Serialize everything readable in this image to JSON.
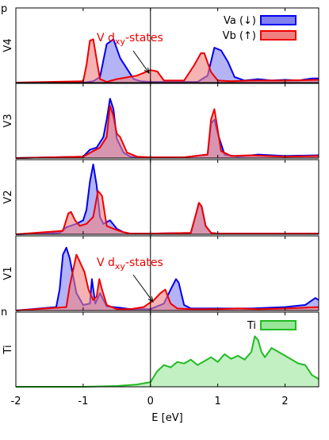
{
  "chart_data": {
    "type": "area",
    "xlabel": "E [eV]",
    "xlim": [
      -2,
      2.5
    ],
    "xticks": [
      -2,
      -1,
      0,
      1,
      2
    ],
    "clipped_labels": {
      "top": "p",
      "mid": "n"
    },
    "legend_top": {
      "placement": "top-right",
      "entries": [
        {
          "label": "Va (↓)",
          "fill": "#8080f0",
          "stroke": "#0000ee"
        },
        {
          "label": "Vb (↑)",
          "fill": "#f08080",
          "stroke": "#ee0000"
        }
      ]
    },
    "legend_ti": {
      "placement": "top-right",
      "entries": [
        {
          "label": "Ti",
          "fill": "#99e699",
          "stroke": "#22bb22"
        }
      ]
    },
    "annotations": [
      {
        "panel": "V4",
        "prefix": "V d",
        "sub": "xy",
        "suffix": "-states",
        "color": "#ee0000",
        "arrow_to_x": 0.0
      },
      {
        "panel": "V1",
        "prefix": "V d",
        "sub": "xy",
        "suffix": "-states",
        "color": "#ee0000",
        "arrow_to_x": 0.05
      }
    ],
    "panels": [
      {
        "label": "V4",
        "ymax": 1.0,
        "series": [
          {
            "name": "Va (↓)",
            "color": "#0000ee",
            "fill": "#8080f0",
            "x": [
              -2.0,
              -1.0,
              -0.85,
              -0.75,
              -0.65,
              -0.55,
              -0.45,
              -0.35,
              -0.25,
              -0.15,
              0.0,
              0.2,
              0.4,
              0.7,
              0.85,
              0.95,
              1.05,
              1.15,
              1.25,
              1.4,
              1.6,
              1.8,
              2.0,
              2.2,
              2.4,
              2.5
            ],
            "y": [
              0.0,
              0.0,
              0.02,
              0.08,
              0.55,
              0.62,
              0.35,
              0.2,
              0.05,
              0.02,
              0.01,
              0.01,
              0.01,
              0.01,
              0.1,
              0.5,
              0.46,
              0.3,
              0.08,
              0.03,
              0.05,
              0.03,
              0.04,
              0.03,
              0.06,
              0.06
            ]
          },
          {
            "name": "Vb (↑)",
            "color": "#ee0000",
            "fill": "#f08080",
            "x": [
              -2.0,
              -1.0,
              -0.95,
              -0.9,
              -0.85,
              -0.75,
              -0.65,
              -0.5,
              -0.2,
              0.0,
              0.1,
              0.2,
              0.5,
              0.65,
              0.75,
              0.8,
              0.9,
              1.0,
              1.2,
              1.5,
              2.0,
              2.5
            ],
            "y": [
              0.0,
              0.02,
              0.25,
              0.6,
              0.62,
              0.05,
              0.01,
              0.05,
              0.1,
              0.18,
              0.16,
              0.03,
              0.03,
              0.25,
              0.42,
              0.42,
              0.15,
              0.03,
              0.02,
              0.03,
              0.03,
              0.04
            ]
          }
        ]
      },
      {
        "label": "V3",
        "ymax": 1.0,
        "series": [
          {
            "name": "Va (↓)",
            "color": "#0000ee",
            "fill": "#8080f0",
            "x": [
              -2.0,
              -1.0,
              -0.9,
              -0.8,
              -0.7,
              -0.65,
              -0.6,
              -0.55,
              -0.5,
              -0.4,
              -0.3,
              -0.2,
              0.0,
              0.5,
              0.85,
              0.9,
              0.95,
              1.0,
              1.1,
              1.3,
              1.6,
              2.0,
              2.5
            ],
            "y": [
              0.0,
              0.02,
              0.12,
              0.15,
              0.3,
              0.55,
              0.85,
              0.7,
              0.28,
              0.08,
              0.02,
              0.01,
              0.01,
              0.01,
              0.05,
              0.5,
              0.55,
              0.35,
              0.05,
              0.02,
              0.05,
              0.03,
              0.04
            ]
          },
          {
            "name": "Vb (↑)",
            "color": "#ee0000",
            "fill": "#f08080",
            "x": [
              -2.0,
              -1.0,
              -0.85,
              -0.75,
              -0.65,
              -0.6,
              -0.55,
              -0.5,
              -0.45,
              -0.35,
              -0.2,
              0.0,
              0.5,
              0.85,
              0.9,
              0.95,
              1.0,
              1.05,
              1.2,
              1.5,
              2.0,
              2.5
            ],
            "y": [
              0.0,
              0.02,
              0.1,
              0.15,
              0.3,
              0.75,
              0.6,
              0.35,
              0.3,
              0.08,
              0.02,
              0.01,
              0.01,
              0.05,
              0.55,
              0.7,
              0.4,
              0.1,
              0.03,
              0.04,
              0.02,
              0.03
            ]
          }
        ]
      },
      {
        "label": "V2",
        "ymax": 1.0,
        "series": [
          {
            "name": "Va (↓)",
            "color": "#0000ee",
            "fill": "#8080f0",
            "x": [
              -2.0,
              -1.35,
              -1.25,
              -1.1,
              -1.0,
              -0.95,
              -0.9,
              -0.85,
              -0.8,
              -0.75,
              -0.7,
              -0.6,
              -0.5,
              -0.4,
              -0.3,
              0.0,
              0.6,
              0.68,
              0.72,
              0.76,
              0.82,
              0.9,
              1.0,
              1.5,
              2.0,
              2.5
            ],
            "y": [
              0.0,
              0.02,
              0.1,
              0.15,
              0.2,
              0.35,
              0.75,
              1.0,
              0.7,
              0.25,
              0.15,
              0.2,
              0.08,
              0.03,
              0.01,
              0.01,
              0.02,
              0.3,
              0.45,
              0.4,
              0.12,
              0.02,
              0.01,
              0.01,
              0.01,
              0.01
            ]
          },
          {
            "name": "Vb (↑)",
            "color": "#ee0000",
            "fill": "#f08080",
            "x": [
              -2.0,
              -1.3,
              -1.22,
              -1.18,
              -1.12,
              -1.05,
              -0.95,
              -0.85,
              -0.78,
              -0.72,
              -0.68,
              -0.65,
              -0.55,
              -0.4,
              -0.3,
              0.0,
              0.6,
              0.68,
              0.72,
              0.76,
              0.82,
              0.9,
              1.0,
              1.5,
              2.0,
              2.5
            ],
            "y": [
              0.0,
              0.05,
              0.3,
              0.32,
              0.2,
              0.12,
              0.15,
              0.25,
              0.62,
              0.55,
              0.3,
              0.12,
              0.08,
              0.03,
              0.01,
              0.01,
              0.02,
              0.3,
              0.45,
              0.4,
              0.12,
              0.02,
              0.01,
              0.01,
              0.01,
              0.01
            ]
          }
        ]
      },
      {
        "label": "V1",
        "ymax": 1.0,
        "series": [
          {
            "name": "Va (↓)",
            "color": "#0000ee",
            "fill": "#8080f0",
            "x": [
              -2.0,
              -1.4,
              -1.35,
              -1.3,
              -1.25,
              -1.2,
              -1.1,
              -1.0,
              -0.9,
              -0.87,
              -0.82,
              -0.75,
              -0.65,
              -0.55,
              -0.45,
              -0.3,
              0.0,
              0.2,
              0.3,
              0.38,
              0.42,
              0.5,
              0.6,
              1.0,
              1.5,
              2.0,
              2.3,
              2.45,
              2.5
            ],
            "y": [
              0.0,
              0.05,
              0.3,
              0.8,
              0.9,
              0.75,
              0.25,
              0.08,
              0.1,
              0.45,
              0.1,
              0.25,
              0.06,
              0.05,
              0.04,
              0.02,
              0.02,
              0.1,
              0.3,
              0.45,
              0.4,
              0.08,
              0.03,
              0.03,
              0.03,
              0.05,
              0.08,
              0.18,
              0.15
            ]
          },
          {
            "name": "Vb (↑)",
            "color": "#ee0000",
            "fill": "#f08080",
            "x": [
              -2.0,
              -1.25,
              -1.2,
              -1.1,
              -1.05,
              -0.98,
              -0.92,
              -0.85,
              -0.8,
              -0.76,
              -0.72,
              -0.65,
              -0.5,
              -0.3,
              -0.1,
              0.05,
              0.15,
              0.22,
              0.3,
              0.4,
              0.6,
              1.0,
              1.3,
              1.6,
              2.0,
              2.5
            ],
            "y": [
              0.0,
              0.05,
              0.35,
              0.8,
              0.7,
              0.55,
              0.3,
              0.15,
              0.2,
              0.45,
              0.3,
              0.08,
              0.02,
              0.02,
              0.05,
              0.15,
              0.25,
              0.3,
              0.1,
              0.03,
              0.02,
              0.02,
              0.03,
              0.02,
              0.03,
              0.05
            ]
          }
        ]
      },
      {
        "label": "Ti",
        "ymax": 0.9,
        "series": [
          {
            "name": "Ti",
            "color": "#22bb22",
            "fill": "#99e699",
            "x": [
              -2.0,
              -1.0,
              -0.5,
              -0.2,
              0.0,
              0.1,
              0.2,
              0.3,
              0.4,
              0.5,
              0.6,
              0.7,
              0.8,
              0.9,
              1.0,
              1.1,
              1.2,
              1.3,
              1.4,
              1.5,
              1.55,
              1.6,
              1.65,
              1.7,
              1.8,
              1.9,
              2.0,
              2.1,
              2.2,
              2.3,
              2.4,
              2.5
            ],
            "y": [
              0.0,
              0.0,
              0.01,
              0.03,
              0.06,
              0.2,
              0.28,
              0.25,
              0.32,
              0.3,
              0.35,
              0.28,
              0.33,
              0.38,
              0.32,
              0.42,
              0.36,
              0.4,
              0.35,
              0.45,
              0.65,
              0.6,
              0.45,
              0.38,
              0.5,
              0.45,
              0.4,
              0.35,
              0.3,
              0.28,
              0.15,
              0.1
            ]
          }
        ]
      }
    ]
  }
}
